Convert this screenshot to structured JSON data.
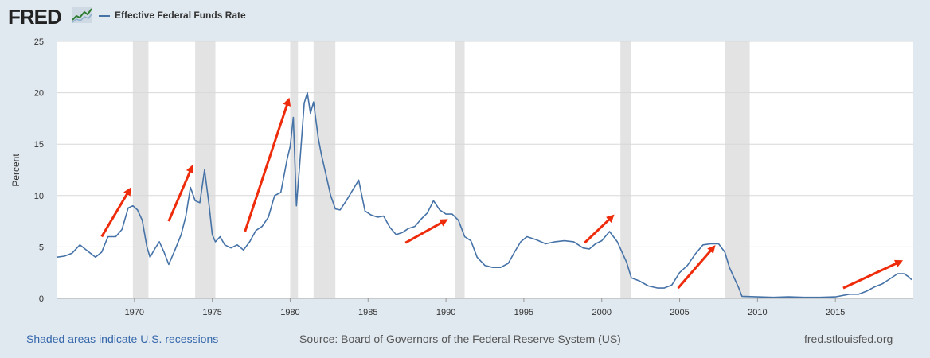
{
  "header": {
    "logo_text": "FRED",
    "legend_label": "Effective Federal Funds Rate",
    "series_color": "#4572a7"
  },
  "footer": {
    "left": "Shaded areas indicate U.S. recessions",
    "source": "Source: Board of Governors of the Federal Reserve System (US)",
    "site": "fred.stlouisfed.org"
  },
  "chart_data": {
    "type": "line",
    "title": "",
    "xlabel": "",
    "ylabel": "Percent",
    "xlim": [
      1965,
      2020
    ],
    "ylim": [
      0,
      25
    ],
    "y_ticks": [
      0,
      5,
      10,
      15,
      20,
      25
    ],
    "x_ticks": [
      1970,
      1975,
      1980,
      1985,
      1990,
      1995,
      2000,
      2005,
      2010,
      2015
    ],
    "grid": true,
    "recessions": [
      [
        1969.9,
        1970.9
      ],
      [
        1973.9,
        1975.2
      ],
      [
        1980.0,
        1980.5
      ],
      [
        1981.5,
        1982.9
      ],
      [
        1990.6,
        1991.2
      ],
      [
        2001.2,
        2001.9
      ],
      [
        2007.9,
        2009.5
      ]
    ],
    "arrows": [
      {
        "from": [
          1967.9,
          6
        ],
        "to": [
          1969.7,
          10.6
        ]
      },
      {
        "from": [
          1972.2,
          7.5
        ],
        "to": [
          1973.7,
          12.8
        ]
      },
      {
        "from": [
          1977.1,
          6.5
        ],
        "to": [
          1979.9,
          19.3
        ]
      },
      {
        "from": [
          1987.4,
          5.4
        ],
        "to": [
          1990.0,
          7.6
        ]
      },
      {
        "from": [
          1998.9,
          5.4
        ],
        "to": [
          2000.7,
          8.0
        ]
      },
      {
        "from": [
          2004.9,
          1.0
        ],
        "to": [
          2007.2,
          5.0
        ]
      },
      {
        "from": [
          2015.5,
          1.0
        ],
        "to": [
          2019.2,
          3.6
        ]
      }
    ],
    "series": [
      {
        "name": "Effective Federal Funds Rate",
        "x": [
          1965.0,
          1965.5,
          1966.0,
          1966.5,
          1967.0,
          1967.5,
          1967.9,
          1968.3,
          1968.8,
          1969.2,
          1969.6,
          1969.9,
          1970.2,
          1970.5,
          1970.8,
          1971.0,
          1971.3,
          1971.6,
          1971.9,
          1972.2,
          1972.6,
          1973.0,
          1973.3,
          1973.6,
          1973.9,
          1974.2,
          1974.5,
          1974.8,
          1975.0,
          1975.2,
          1975.5,
          1975.8,
          1976.2,
          1976.6,
          1977.0,
          1977.4,
          1977.8,
          1978.2,
          1978.6,
          1979.0,
          1979.4,
          1979.8,
          1980.0,
          1980.2,
          1980.4,
          1980.6,
          1980.9,
          1981.1,
          1981.3,
          1981.5,
          1981.8,
          1982.0,
          1982.3,
          1982.6,
          1982.9,
          1983.2,
          1983.6,
          1984.0,
          1984.4,
          1984.8,
          1985.2,
          1985.6,
          1986.0,
          1986.4,
          1986.8,
          1987.2,
          1987.6,
          1988.0,
          1988.4,
          1988.8,
          1989.2,
          1989.6,
          1990.0,
          1990.4,
          1990.8,
          1991.2,
          1991.6,
          1992.0,
          1992.5,
          1993.0,
          1993.5,
          1994.0,
          1994.4,
          1994.8,
          1995.2,
          1995.8,
          1996.4,
          1997.0,
          1997.6,
          1998.2,
          1998.8,
          1999.2,
          1999.6,
          2000.0,
          2000.5,
          2001.0,
          2001.3,
          2001.6,
          2001.9,
          2002.4,
          2003.0,
          2003.6,
          2004.0,
          2004.5,
          2005.0,
          2005.5,
          2006.0,
          2006.5,
          2007.0,
          2007.5,
          2007.9,
          2008.2,
          2008.5,
          2008.8,
          2009.0,
          2010.0,
          2011.0,
          2012.0,
          2013.0,
          2014.0,
          2015.0,
          2015.9,
          2016.5,
          2017.0,
          2017.5,
          2018.0,
          2018.5,
          2019.0,
          2019.4,
          2019.7,
          2019.9
        ],
        "y": [
          4.0,
          4.1,
          4.4,
          5.2,
          4.6,
          4.0,
          4.5,
          6.0,
          6.0,
          6.7,
          8.8,
          9.0,
          8.6,
          7.6,
          5.0,
          4.0,
          4.8,
          5.5,
          4.5,
          3.3,
          4.7,
          6.2,
          8.0,
          10.8,
          9.5,
          9.3,
          12.5,
          9.0,
          6.2,
          5.5,
          6.0,
          5.2,
          4.9,
          5.2,
          4.7,
          5.5,
          6.6,
          7.0,
          7.9,
          10.0,
          10.3,
          13.5,
          14.8,
          17.6,
          9.0,
          12.8,
          19.0,
          20.0,
          18.0,
          19.1,
          15.6,
          14.0,
          12.0,
          10.0,
          8.7,
          8.6,
          9.5,
          10.5,
          11.5,
          8.5,
          8.1,
          7.9,
          8.0,
          6.9,
          6.2,
          6.4,
          6.8,
          7.0,
          7.7,
          8.3,
          9.5,
          8.6,
          8.2,
          8.2,
          7.6,
          6.0,
          5.6,
          4.0,
          3.2,
          3.0,
          3.0,
          3.4,
          4.5,
          5.5,
          6.0,
          5.7,
          5.3,
          5.5,
          5.6,
          5.5,
          4.9,
          4.8,
          5.3,
          5.6,
          6.5,
          5.5,
          4.5,
          3.5,
          2.0,
          1.7,
          1.2,
          1.0,
          1.0,
          1.3,
          2.5,
          3.2,
          4.3,
          5.2,
          5.3,
          5.3,
          4.5,
          3.0,
          2.0,
          1.0,
          0.2,
          0.15,
          0.1,
          0.15,
          0.1,
          0.1,
          0.15,
          0.4,
          0.4,
          0.7,
          1.1,
          1.4,
          1.9,
          2.4,
          2.4,
          2.1,
          1.8
        ]
      }
    ]
  }
}
